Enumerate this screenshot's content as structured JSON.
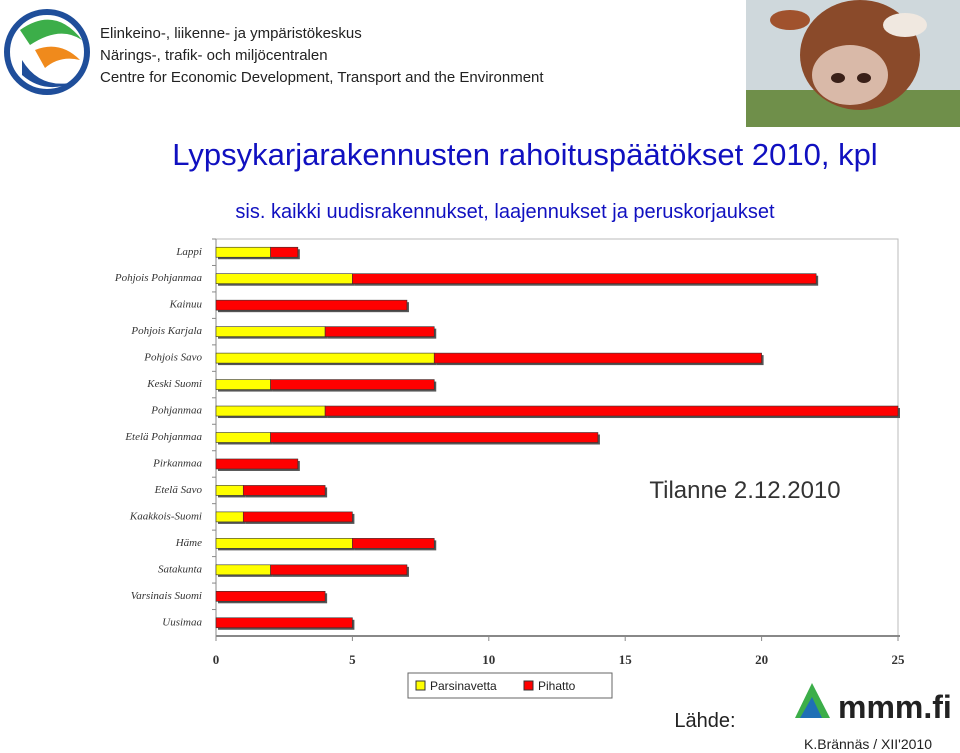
{
  "header": {
    "org_lines": [
      "Elinkeino-, liikenne- ja ympäristökeskus",
      "Närings-, trafik- och miljöcentralen",
      "Centre for Economic Development, Transport and the Environment"
    ]
  },
  "chart_data": {
    "type": "stacked-bar-horizontal",
    "title": "Lypsykarjarakennusten rahoituspäätökset 2010, kpl",
    "subtitle": "sis. kaikki uudisrakennukset, laajennukset ja peruskorjaukset",
    "annotation": "Tilanne 2.12.2010",
    "categories": [
      "Lappi",
      "Pohjois Pohjanmaa",
      "Kainuu",
      "Pohjois Karjala",
      "Pohjois Savo",
      "Keski Suomi",
      "Pohjanmaa",
      "Etelä Pohjanmaa",
      "Pirkanmaa",
      "Etelä Savo",
      "Kaakkois-Suomi",
      "Häme",
      "Satakunta",
      "Varsinais Suomi",
      "Uusimaa"
    ],
    "series": [
      {
        "name": "Parsinavetta",
        "color": "#ffff00",
        "values": [
          2,
          5,
          0,
          4,
          8,
          2,
          4,
          2,
          0,
          1,
          1,
          5,
          2,
          0,
          0
        ]
      },
      {
        "name": "Pihatto",
        "color": "#ff0000",
        "values": [
          1,
          17,
          7,
          4,
          12,
          6,
          21,
          12,
          3,
          3,
          4,
          3,
          5,
          4,
          5
        ]
      }
    ],
    "xlim": [
      0,
      25
    ],
    "xticks": [
      0,
      5,
      10,
      15,
      20,
      25
    ],
    "legend": "bottom"
  },
  "footer": {
    "source_label": "Lähde:",
    "source_logo": "mmm.fi",
    "author": "K.Brännäs / XII'2010"
  }
}
